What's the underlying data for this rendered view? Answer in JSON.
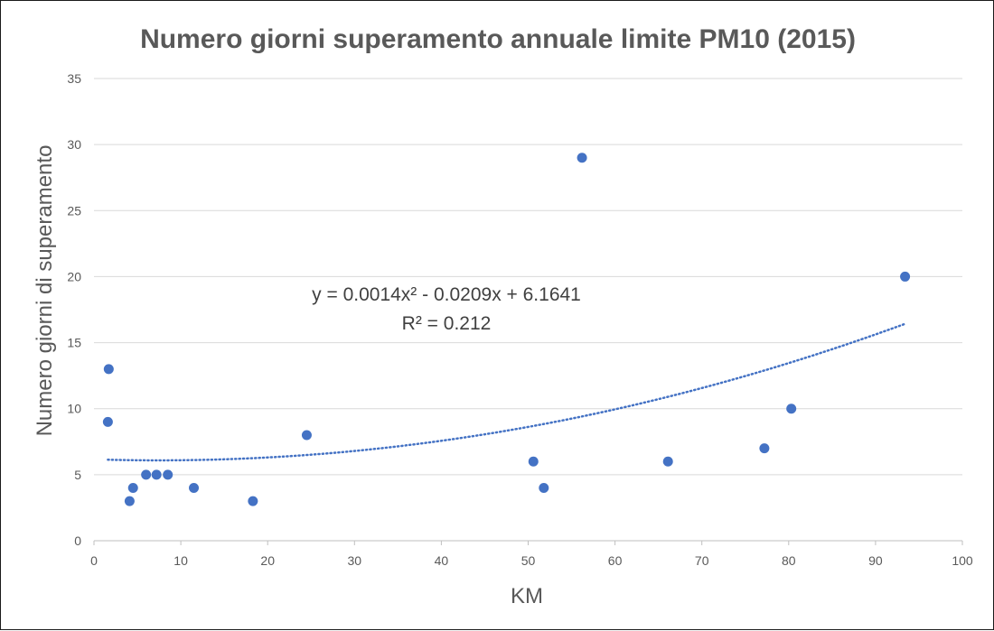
{
  "chart_data": {
    "type": "scatter",
    "title": "Numero giorni superamento annuale limite PM10 (2015)",
    "xlabel": "KM",
    "ylabel": "Numero giorni di superamento",
    "xlim": [
      0,
      100
    ],
    "ylim": [
      0,
      35
    ],
    "xticks": [
      0,
      10,
      20,
      30,
      40,
      50,
      60,
      70,
      80,
      90,
      100
    ],
    "yticks": [
      0,
      5,
      10,
      15,
      20,
      25,
      30,
      35
    ],
    "grid": true,
    "legend": "none",
    "marker_color": "#4472c4",
    "trendline_color": "#4472c4",
    "series": [
      {
        "points": [
          {
            "x": 1.7,
            "y": 13
          },
          {
            "x": 1.6,
            "y": 9
          },
          {
            "x": 4.1,
            "y": 3
          },
          {
            "x": 4.5,
            "y": 4
          },
          {
            "x": 6.0,
            "y": 5
          },
          {
            "x": 7.2,
            "y": 5
          },
          {
            "x": 8.5,
            "y": 5
          },
          {
            "x": 11.5,
            "y": 4
          },
          {
            "x": 18.3,
            "y": 3
          },
          {
            "x": 24.5,
            "y": 8
          },
          {
            "x": 50.6,
            "y": 6
          },
          {
            "x": 51.8,
            "y": 4
          },
          {
            "x": 56.2,
            "y": 29
          },
          {
            "x": 66.1,
            "y": 6
          },
          {
            "x": 77.2,
            "y": 7
          },
          {
            "x": 80.3,
            "y": 10
          },
          {
            "x": 93.4,
            "y": 20
          }
        ]
      }
    ],
    "trendline": {
      "type": "polynomial",
      "coefficients": [
        0.0014,
        -0.0209,
        6.1641
      ],
      "x_range": [
        1.6,
        93.4
      ],
      "equation_label": "y = 0.0014x² - 0.0209x + 6.1641",
      "r2_label": "R² = 0.212"
    }
  }
}
